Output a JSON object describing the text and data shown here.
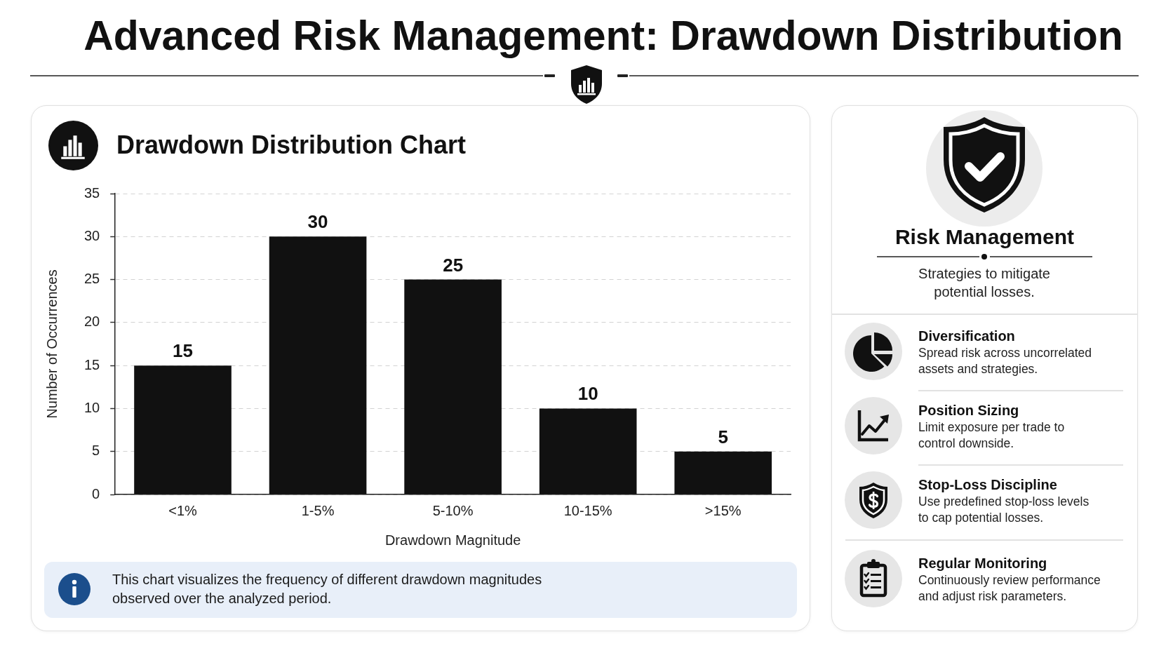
{
  "chart_data": [
    {
      "type": "bar",
      "title": "Advanced Risk Management: Drawdown Distribution",
      "subtitle": "Drawdown Distribution Chart",
      "xlabel": "Drawdown Magnitude",
      "ylabel": "Number of Occurrences",
      "categories": [
        "<1%",
        "1-5%",
        "5-10%",
        "10-15%",
        ">15%"
      ],
      "values": [
        15,
        30,
        25,
        10,
        5
      ],
      "color": "#111111",
      "ylim": [
        0,
        35
      ],
      "yticks": [
        0,
        5,
        10,
        15,
        20,
        25,
        30,
        35
      ],
      "grid": "y",
      "data_labels": true,
      "annotations": [
        "This chart visualizes the frequency of different drawdown magnitudes observed over the analyzed period."
      ]
    },
    {
      "type": "other",
      "title": "Risk Management",
      "subtitle": "Strategies to mitigate potential losses.",
      "annotations": [
        "Diversification",
        "Spread risk across uncorrelated assets and strategies.",
        "Position Sizing",
        "Limit exposure per trade to control downside.",
        "Stop-Loss Discipline",
        "Use predefined stop-loss levels to cap potential losses.",
        "Regular Monitoring",
        "Continuously review performance and adjust risk parameters."
      ]
    }
  ]
}
